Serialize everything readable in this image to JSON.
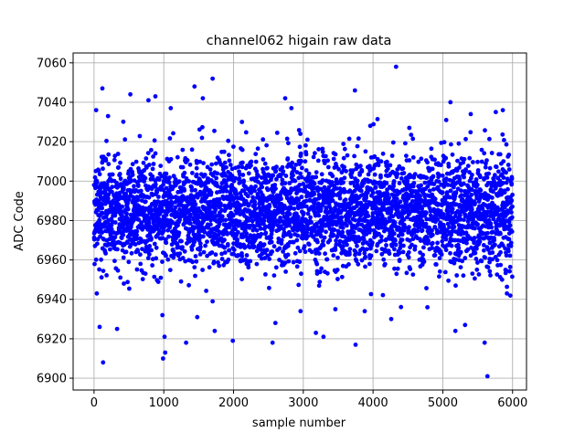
{
  "chart_data": {
    "type": "scatter",
    "title": "channel062 higain raw data",
    "xlabel": "sample number",
    "ylabel": "ADC Code",
    "xlim": [
      -300,
      6200
    ],
    "ylim": [
      6894,
      7065
    ],
    "xticks": [
      0,
      1000,
      2000,
      3000,
      4000,
      5000,
      6000
    ],
    "yticks": [
      6900,
      6920,
      6940,
      6960,
      6980,
      7000,
      7020,
      7040,
      7060
    ],
    "xtick_labels": [
      "0",
      "1000",
      "2000",
      "3000",
      "4000",
      "5000",
      "6000"
    ],
    "ytick_labels": [
      "6900",
      "6920",
      "6940",
      "6960",
      "6980",
      "7000",
      "7020",
      "7040",
      "7060"
    ],
    "grid": true,
    "marker_color": "#0000ff",
    "series": [
      {
        "n_points": 6000,
        "x_range": [
          0,
          5999
        ],
        "typical_band": [
          6950,
          7020
        ],
        "central_value": 6985,
        "points": [
          [
            130,
            6908
          ],
          [
            330,
            6925
          ],
          [
            80,
            6926
          ],
          [
            520,
            7044
          ],
          [
            880,
            7043
          ],
          [
            780,
            7041
          ],
          [
            120,
            7047
          ],
          [
            990,
            6910
          ],
          [
            1020,
            6913
          ],
          [
            1010,
            6921
          ],
          [
            980,
            6932
          ],
          [
            1440,
            7048
          ],
          [
            1560,
            7042
          ],
          [
            1700,
            7052
          ],
          [
            1320,
            6918
          ],
          [
            1480,
            6931
          ],
          [
            1730,
            6924
          ],
          [
            1990,
            6919
          ],
          [
            2560,
            6918
          ],
          [
            2600,
            6928
          ],
          [
            2740,
            7042
          ],
          [
            2830,
            7037
          ],
          [
            3180,
            6923
          ],
          [
            3290,
            6921
          ],
          [
            3750,
            6917
          ],
          [
            3740,
            7046
          ],
          [
            4330,
            7058
          ],
          [
            4260,
            6930
          ],
          [
            5110,
            7040
          ],
          [
            5180,
            6924
          ],
          [
            5600,
            6918
          ],
          [
            5640,
            6901
          ],
          [
            5760,
            7035
          ],
          [
            5860,
            7036
          ],
          [
            5920,
            6943
          ],
          [
            30,
            7036
          ],
          [
            200,
            7033
          ],
          [
            1100,
            7037
          ],
          [
            2120,
            7030
          ],
          [
            3960,
            7028
          ],
          [
            4520,
            7027
          ],
          [
            5050,
            7031
          ],
          [
            5400,
            7034
          ],
          [
            5850,
            6950
          ],
          [
            2960,
            6934
          ],
          [
            3460,
            6935
          ],
          [
            4780,
            6936
          ],
          [
            40,
            6943
          ],
          [
            5320,
            6927
          ],
          [
            3880,
            6934
          ]
        ]
      }
    ]
  }
}
